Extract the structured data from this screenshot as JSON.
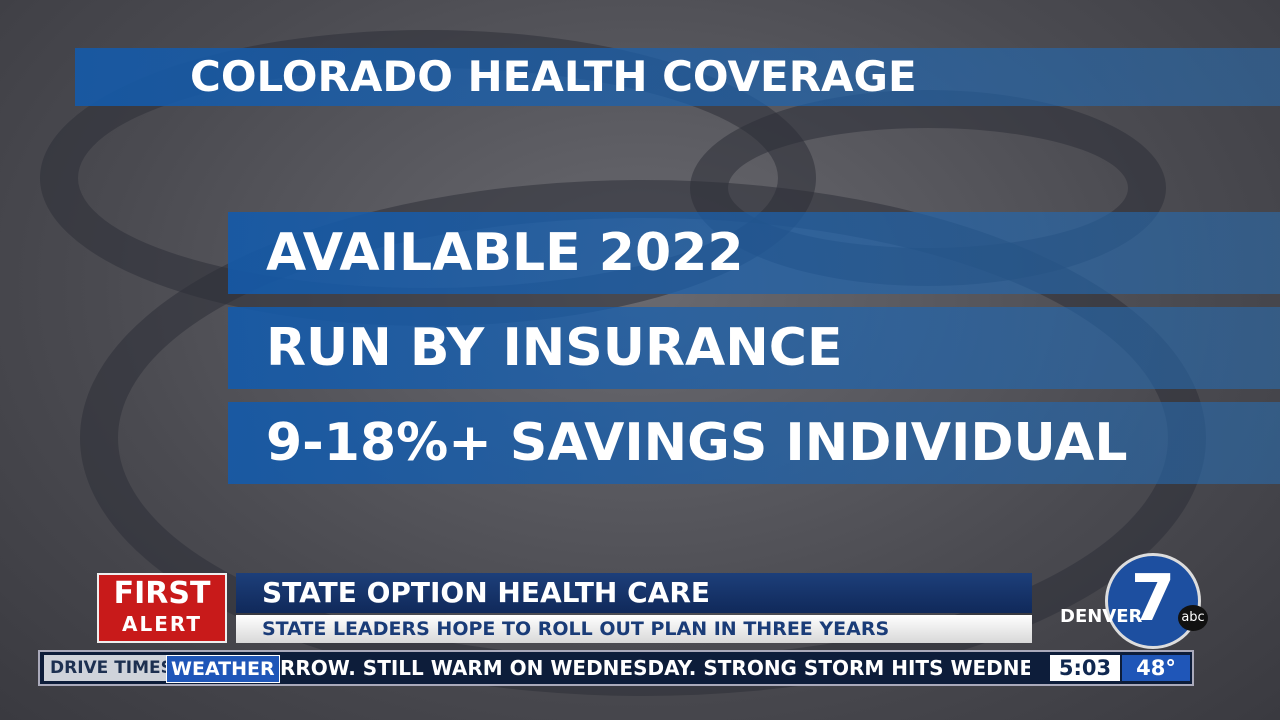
{
  "graphic": {
    "title": "COLORADO HEALTH COVERAGE",
    "points": [
      "AVAILABLE 2022",
      "RUN BY INSURANCE",
      "9-18%+ SAVINGS INDIVIDUAL"
    ]
  },
  "lower_third": {
    "badge_line1": "FIRST",
    "badge_line2": "ALERT",
    "headline": "STATE OPTION HEALTH CARE",
    "subhead": "STATE LEADERS HOPE TO ROLL OUT PLAN IN THREE YEARS"
  },
  "logo": {
    "number": "7",
    "station": "DENVER",
    "network": "abc"
  },
  "ticker": {
    "tab1": "DRIVE TIMES",
    "tab2": "WEATHER",
    "text": "RROW.  STILL WARM ON WEDNESDAY.  STRONG STORM HITS WEDNESDAY N",
    "time": "5:03",
    "temp": "48°"
  }
}
